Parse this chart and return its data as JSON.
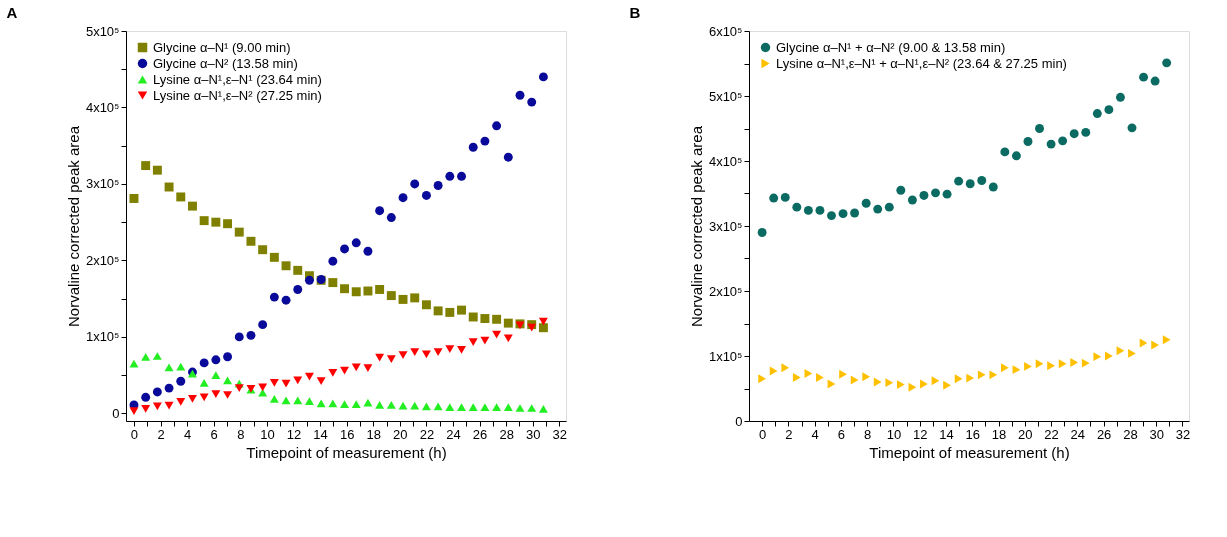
{
  "chart_data": [
    {
      "type": "scatter",
      "title": "A",
      "xlabel": "Timepoint of measurement (h)",
      "ylabel": "Norvaline corrected peak area",
      "x": [
        0,
        0.88,
        1.76,
        2.64,
        3.52,
        4.4,
        5.28,
        6.16,
        7.04,
        7.92,
        8.8,
        9.68,
        10.56,
        11.44,
        12.32,
        13.2,
        14.08,
        14.96,
        15.84,
        16.72,
        17.6,
        18.48,
        19.36,
        20.24,
        21.12,
        22.0,
        22.88,
        23.76,
        24.64,
        25.52,
        26.4,
        27.28,
        28.16,
        29.04,
        29.92,
        30.8
      ],
      "series": [
        {
          "name": "Glycine α–N¹ (9.00 min)",
          "color": "#808000",
          "marker": "square",
          "values": [
            281000,
            324000,
            318000,
            296000,
            283000,
            271000,
            252000,
            250000,
            248000,
            237000,
            225000,
            214000,
            204000,
            193000,
            187000,
            180000,
            174000,
            171000,
            163000,
            159000,
            160000,
            162000,
            154000,
            149000,
            151000,
            142000,
            134000,
            132000,
            135000,
            126000,
            124000,
            123000,
            118000,
            117000,
            116000,
            112000
          ]
        },
        {
          "name": "Glycine α–N² (13.58 min)",
          "color": "#0a0a9a",
          "marker": "circle",
          "values": [
            11000,
            21000,
            28000,
            33000,
            42000,
            54000,
            66000,
            70000,
            74000,
            100000,
            102000,
            116000,
            152000,
            148000,
            162000,
            174000,
            175000,
            199000,
            215000,
            223000,
            212000,
            265000,
            256000,
            282000,
            300000,
            285000,
            298000,
            310000,
            310000,
            348000,
            356000,
            376000,
            335000,
            416000,
            407000,
            440000
          ]
        },
        {
          "name": "Lysine α–N¹,ε–N¹ (23.64 min)",
          "color": "#22ee22",
          "marker": "triangle-up",
          "values": [
            65000,
            74000,
            75000,
            60000,
            61000,
            52000,
            40000,
            50000,
            43000,
            39000,
            31000,
            27000,
            19000,
            17000,
            17000,
            16000,
            13000,
            13000,
            12000,
            12000,
            14000,
            11000,
            11000,
            10000,
            10000,
            9000,
            9000,
            8000,
            8000,
            8000,
            8000,
            8000,
            8000,
            7000,
            7000,
            6000
          ]
        },
        {
          "name": "Lysine α–N¹,ε–N² (27.25 min)",
          "color": "#ff0000",
          "marker": "triangle-down",
          "values": [
            3000,
            6000,
            9000,
            10000,
            15000,
            19000,
            21000,
            25000,
            24000,
            33000,
            32000,
            34000,
            40000,
            39000,
            43000,
            48000,
            42000,
            53000,
            56000,
            60000,
            59000,
            73000,
            71000,
            76000,
            80000,
            77000,
            80000,
            84000,
            83000,
            93000,
            95000,
            103000,
            98000,
            115000,
            112000,
            120000
          ]
        }
      ],
      "xlim": [
        -0.6,
        32.5
      ],
      "ylim": [
        -10000,
        500000
      ],
      "xticks": [
        0,
        {
          "value": 1,
          "label": null
        },
        2,
        {
          "value": 3,
          "label": null
        },
        4,
        {
          "value": 5,
          "label": null
        },
        6,
        {
          "value": 7,
          "label": null
        },
        8,
        {
          "value": 9,
          "label": null
        },
        10,
        {
          "value": 11,
          "label": null
        },
        12,
        {
          "value": 13,
          "label": null
        },
        14,
        {
          "value": 15,
          "label": null
        },
        16,
        {
          "value": 17,
          "label": null
        },
        18,
        {
          "value": 19,
          "label": null
        },
        20,
        {
          "value": 21,
          "label": null
        },
        22,
        {
          "value": 23,
          "label": null
        },
        24,
        {
          "value": 25,
          "label": null
        },
        26,
        {
          "value": 27,
          "label": null
        },
        28,
        {
          "value": 29,
          "label": null
        },
        30,
        {
          "value": 31,
          "label": null
        },
        32
      ],
      "yticks": [
        0,
        {
          "value": 50000,
          "label": null
        },
        {
          "value": 100000,
          "label": "1x10⁵"
        },
        {
          "value": 150000,
          "label": null
        },
        {
          "value": 200000,
          "label": "2x10⁵"
        },
        {
          "value": 250000,
          "label": null
        },
        {
          "value": 300000,
          "label": "3x10⁵"
        },
        {
          "value": 350000,
          "label": null
        },
        {
          "value": 400000,
          "label": "4x10⁵"
        },
        {
          "value": 450000,
          "label": null
        },
        {
          "value": 500000,
          "label": "5x10⁵"
        }
      ],
      "legend": "top left",
      "grid": false
    },
    {
      "type": "scatter",
      "title": "B",
      "xlabel": "Timepoint of measurement (h)",
      "ylabel": "Norvaline corrected peak area",
      "x": [
        0,
        0.88,
        1.76,
        2.64,
        3.52,
        4.4,
        5.28,
        6.16,
        7.04,
        7.92,
        8.8,
        9.68,
        10.56,
        11.44,
        12.32,
        13.2,
        14.08,
        14.96,
        15.84,
        16.72,
        17.6,
        18.48,
        19.36,
        20.24,
        21.12,
        22.0,
        22.88,
        23.76,
        24.64,
        25.52,
        26.4,
        27.28,
        28.16,
        29.04,
        29.92,
        30.8
      ],
      "series": [
        {
          "name": "Glycine α–N¹ + α–N² (9.00 & 13.58 min)",
          "color": "#0b6b63",
          "marker": "circle",
          "values": [
            290000,
            343000,
            344000,
            329000,
            324000,
            324000,
            316000,
            319000,
            320000,
            335000,
            326000,
            329000,
            355000,
            340000,
            347000,
            351000,
            349000,
            369000,
            365000,
            370000,
            360000,
            414000,
            408000,
            430000,
            450000,
            426000,
            431000,
            442000,
            444000,
            473000,
            479000,
            498000,
            451000,
            529000,
            523000,
            551000
          ]
        },
        {
          "name": "Lysine α–N¹,ε–N¹ + α–N¹,ε–N² (23.64 & 27.25 min)",
          "color": "#ffc000",
          "marker": "triangle-right",
          "values": [
            65000,
            77000,
            82000,
            67000,
            73000,
            67000,
            57000,
            72000,
            63000,
            68000,
            60000,
            59000,
            56000,
            52000,
            57000,
            62000,
            55000,
            65000,
            66000,
            71000,
            71000,
            82000,
            79000,
            84000,
            88000,
            85000,
            88000,
            90000,
            89000,
            99000,
            100000,
            108000,
            104000,
            120000,
            117000,
            125000
          ]
        }
      ],
      "xlim": [
        -1,
        32.5
      ],
      "ylim": [
        0,
        600000
      ],
      "xticks": [
        0,
        {
          "value": 1,
          "label": null
        },
        2,
        {
          "value": 3,
          "label": null
        },
        4,
        {
          "value": 5,
          "label": null
        },
        6,
        {
          "value": 7,
          "label": null
        },
        8,
        {
          "value": 9,
          "label": null
        },
        10,
        {
          "value": 11,
          "label": null
        },
        12,
        {
          "value": 13,
          "label": null
        },
        14,
        {
          "value": 15,
          "label": null
        },
        16,
        {
          "value": 17,
          "label": null
        },
        18,
        {
          "value": 19,
          "label": null
        },
        20,
        {
          "value": 21,
          "label": null
        },
        22,
        {
          "value": 23,
          "label": null
        },
        24,
        {
          "value": 25,
          "label": null
        },
        26,
        {
          "value": 27,
          "label": null
        },
        28,
        {
          "value": 29,
          "label": null
        },
        30,
        {
          "value": 31,
          "label": null
        },
        32
      ],
      "yticks": [
        0,
        {
          "value": 50000,
          "label": null
        },
        {
          "value": 100000,
          "label": "1x10⁵"
        },
        {
          "value": 150000,
          "label": null
        },
        {
          "value": 200000,
          "label": "2x10⁵"
        },
        {
          "value": 250000,
          "label": null
        },
        {
          "value": 300000,
          "label": "3x10⁵"
        },
        {
          "value": 350000,
          "label": null
        },
        {
          "value": 400000,
          "label": "4x10⁵"
        },
        {
          "value": 450000,
          "label": null
        },
        {
          "value": 500000,
          "label": "5x10⁵"
        },
        {
          "value": 550000,
          "label": null
        },
        {
          "value": 600000,
          "label": "6x10⁵"
        }
      ],
      "legend": "top left",
      "grid": false
    }
  ]
}
